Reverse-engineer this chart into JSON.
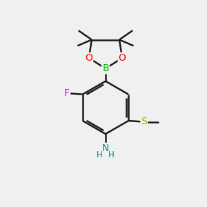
{
  "background_color": "#f0f0f0",
  "bond_color": "#1a1a1a",
  "bond_width": 1.8,
  "atom_colors": {
    "B": "#00bb00",
    "O": "#ff0000",
    "F": "#ee00ee",
    "N": "#008888",
    "S": "#aaaa00",
    "C": "#1a1a1a"
  },
  "figsize": [
    3.0,
    3.0
  ],
  "dpi": 100,
  "scale": 1.0
}
